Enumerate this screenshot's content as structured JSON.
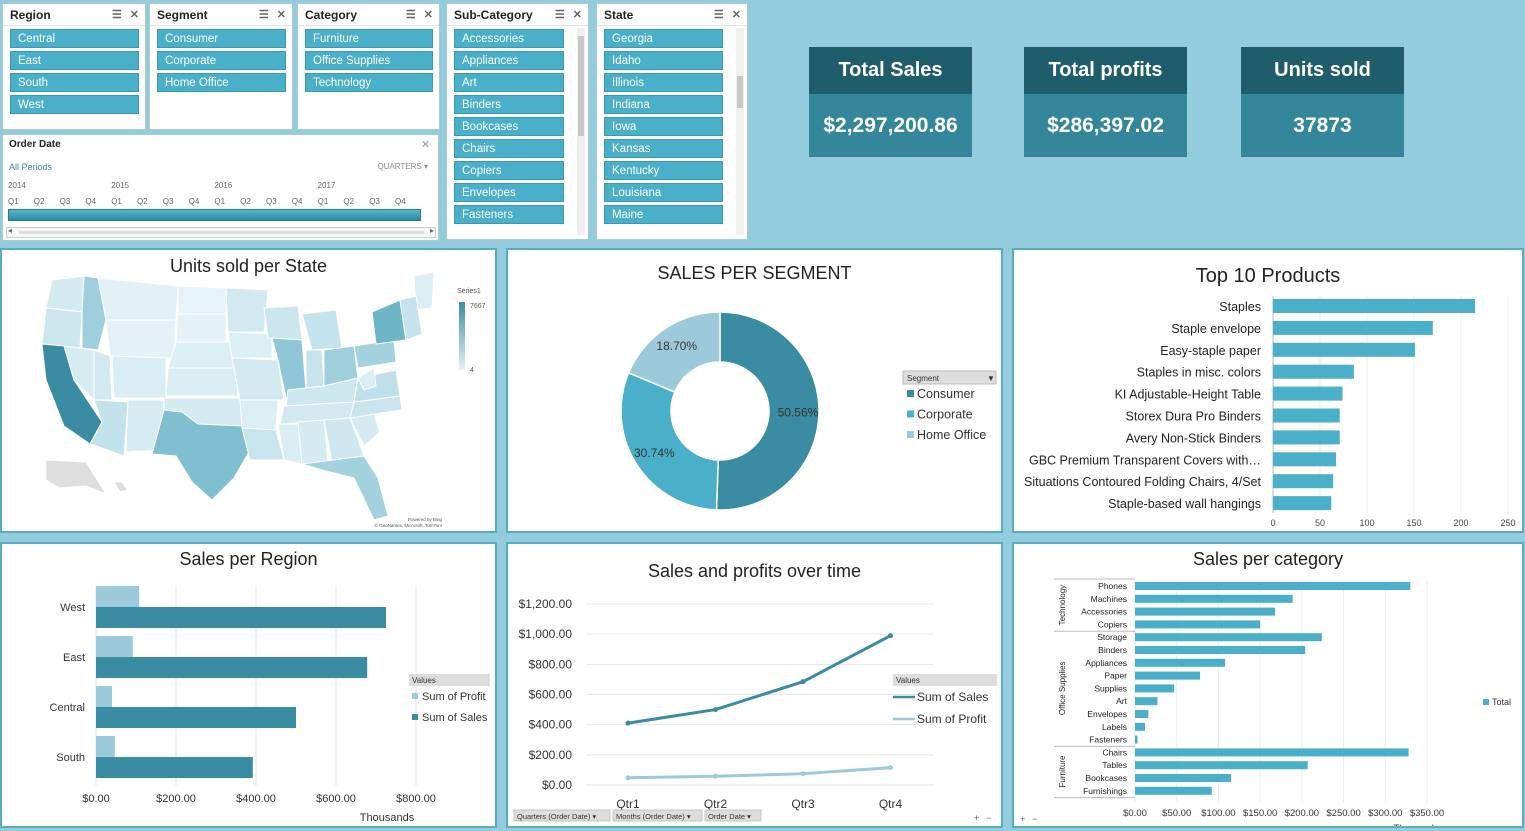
{
  "slicers": {
    "region": {
      "title": "Region",
      "items": [
        "Central",
        "East",
        "South",
        "West"
      ]
    },
    "segment": {
      "title": "Segment",
      "items": [
        "Consumer",
        "Corporate",
        "Home Office"
      ]
    },
    "category": {
      "title": "Category",
      "items": [
        "Furniture",
        "Office Supplies",
        "Technology"
      ]
    },
    "subcategory": {
      "title": "Sub-Category",
      "items": [
        "Accessories",
        "Appliances",
        "Art",
        "Binders",
        "Bookcases",
        "Chairs",
        "Copiers",
        "Envelopes",
        "Fasteners"
      ]
    },
    "state": {
      "title": "State",
      "items": [
        "Georgia",
        "Idaho",
        "Illinois",
        "Indiana",
        "Iowa",
        "Kansas",
        "Kentucky",
        "Louisiana",
        "Maine"
      ]
    }
  },
  "timeline": {
    "title": "Order Date",
    "all_periods": "All Periods",
    "level": "QUARTERS",
    "years": [
      "2014",
      "2015",
      "2016",
      "2017"
    ],
    "quarters": [
      "Q1",
      "Q2",
      "Q3",
      "Q4"
    ]
  },
  "kpis": [
    {
      "title": "Total Sales",
      "value": "$2,297,200.86"
    },
    {
      "title": "Total profits",
      "value": "$286,397.02"
    },
    {
      "title": "Units sold",
      "value": "37873"
    }
  ],
  "map": {
    "title": "Units sold per State",
    "legend_title": "Series1",
    "legend_max": "7667",
    "legend_min": "4",
    "credit1": "Powered by Bing",
    "credit2": "© GeoNames, Microsoft, TomTom"
  },
  "colors": {
    "accent": "#4aafc8",
    "dark": "#1f5d6b",
    "kpi": "#34879b",
    "bg": "#93cddd"
  },
  "chart_data": [
    {
      "type": "pie",
      "title": "SALES PER SEGMENT",
      "legend_title": "Segment",
      "categories": [
        "Consumer",
        "Corporate",
        "Home Office"
      ],
      "values": [
        50.56,
        30.74,
        18.7
      ],
      "labels": [
        "50.56%",
        "30.74%",
        "18.70%"
      ],
      "colors": [
        "#3a8ca2",
        "#4aafc8",
        "#9dcadb"
      ]
    },
    {
      "type": "bar",
      "title": "Top 10 Products",
      "categories": [
        "Staples",
        "Staple envelope",
        "Easy-staple paper",
        "Staples in misc. colors",
        "KI Adjustable-Height Table",
        "Storex Dura Pro Binders",
        "Avery Non-Stick Binders",
        "GBC Premium Transparent Covers with…",
        "Situations Contoured Folding Chairs, 4/Set",
        "Staple-based wall hangings"
      ],
      "values": [
        215,
        170,
        151,
        86,
        74,
        71,
        71,
        67,
        64,
        62
      ],
      "xlim": [
        0,
        250
      ],
      "ticks": [
        "0",
        "50",
        "100",
        "150",
        "200",
        "250"
      ]
    },
    {
      "type": "bar",
      "title": "Sales per Region",
      "categories": [
        "West",
        "East",
        "Central",
        "South"
      ],
      "series": [
        {
          "name": "Sum of Profit",
          "values": [
            108,
            92,
            40,
            47
          ]
        },
        {
          "name": "Sum of Sales",
          "values": [
            725,
            678,
            500,
            392
          ]
        }
      ],
      "xlim": [
        0,
        800
      ],
      "ticks": [
        "$0.00",
        "$200.00",
        "$400.00",
        "$600.00",
        "$800.00"
      ],
      "xlabel": "Thousands",
      "legend_title": "Values"
    },
    {
      "type": "line",
      "title": "Sales and profits over time",
      "categories": [
        "Qtr1",
        "Qtr2",
        "Qtr3",
        "Qtr4"
      ],
      "series": [
        {
          "name": "Sum of Sales",
          "values": [
            410,
            500,
            685,
            990
          ]
        },
        {
          "name": "Sum of Profit",
          "values": [
            48,
            58,
            75,
            115
          ]
        }
      ],
      "ylim": [
        0,
        1200
      ],
      "ticks": [
        "$0.00",
        "$200.00",
        "$400.00",
        "$600.00",
        "$800.00",
        "$1,000.00",
        "$1,200.00"
      ],
      "legend_title": "Values",
      "filters": [
        "Quarters (Order Date)",
        "Months (Order Date)",
        "Order Date"
      ]
    },
    {
      "type": "bar",
      "title": "Sales per category",
      "groups": [
        {
          "name": "Technology",
          "categories": [
            "Phones",
            "Machines",
            "Accessories",
            "Copiers"
          ],
          "values": [
            330,
            189,
            168,
            150
          ]
        },
        {
          "name": "Office Supplies",
          "categories": [
            "Storage",
            "Binders",
            "Appliances",
            "Paper",
            "Supplies",
            "Art",
            "Envelopes",
            "Labels",
            "Fasteners"
          ],
          "values": [
            224,
            204,
            108,
            78,
            47,
            27,
            16,
            12,
            3
          ]
        },
        {
          "name": "Furniture",
          "categories": [
            "Chairs",
            "Tables",
            "Bookcases",
            "Furnishings"
          ],
          "values": [
            328,
            207,
            115,
            92
          ]
        }
      ],
      "legend": [
        "Total"
      ],
      "xlim": [
        0,
        350
      ],
      "ticks": [
        "$0.00",
        "$50.00",
        "$100.00",
        "$150.00",
        "$200.00",
        "$250.00",
        "$300.00",
        "$350.00"
      ],
      "xlabel": "Thousands"
    }
  ]
}
